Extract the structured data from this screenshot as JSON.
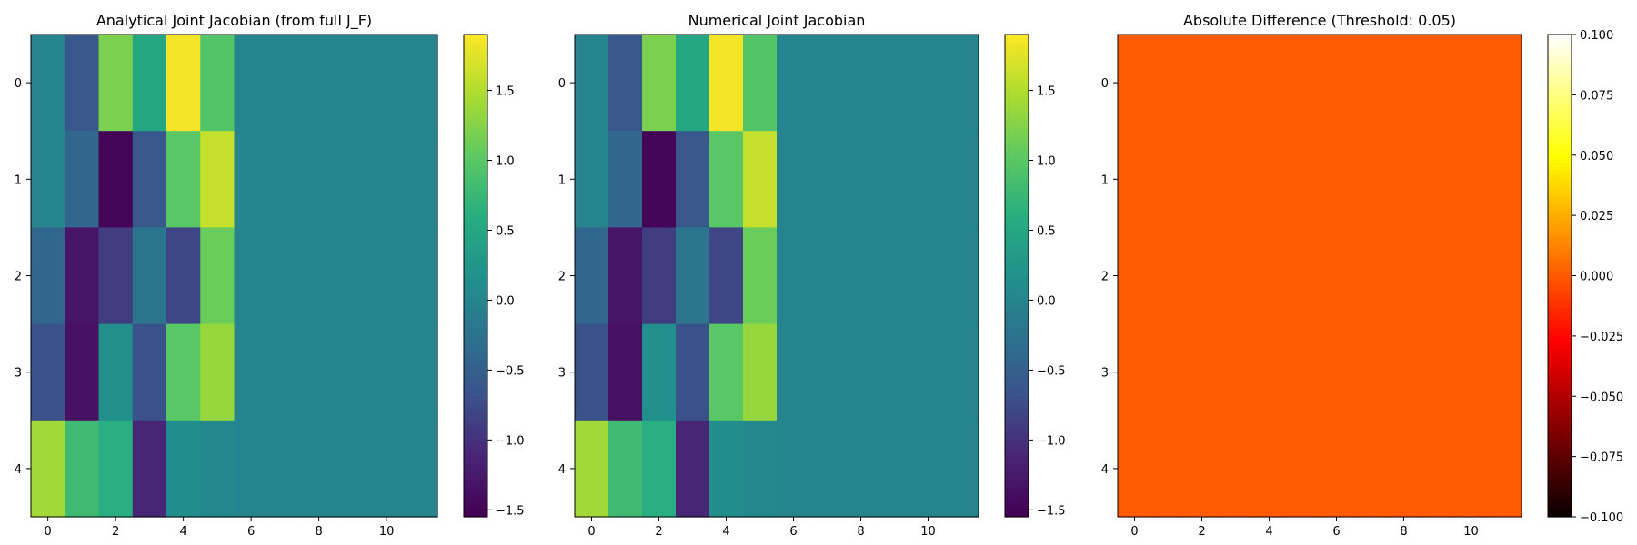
{
  "chart_data": [
    {
      "type": "heatmap",
      "title": "Analytical Joint Jacobian (from full J_F)",
      "colormap": "viridis",
      "rows": 5,
      "cols": 12,
      "x_ticks": [
        0,
        2,
        4,
        6,
        8,
        10
      ],
      "y_ticks": [
        0,
        1,
        2,
        3,
        4
      ],
      "values": [
        [
          0.0,
          -0.6,
          1.2,
          0.5,
          1.85,
          0.95,
          0,
          0,
          0,
          0,
          0,
          0
        ],
        [
          0.0,
          -0.4,
          -1.5,
          -0.6,
          1.0,
          1.6,
          0,
          0,
          0,
          0,
          0,
          0
        ],
        [
          -0.4,
          -1.3,
          -0.9,
          -0.2,
          -0.8,
          1.1,
          0,
          0,
          0,
          0,
          0,
          0
        ],
        [
          -0.7,
          -1.35,
          0.15,
          -0.7,
          1.0,
          1.35,
          0,
          0,
          0,
          0,
          0,
          0
        ],
        [
          1.4,
          0.8,
          0.6,
          -1.1,
          0.1,
          0.05,
          0,
          0,
          0,
          0,
          0,
          0
        ]
      ],
      "colorbar": {
        "min": -1.55,
        "max": 1.9,
        "ticks": [
          -1.5,
          -1.0,
          -0.5,
          0.0,
          0.5,
          1.0,
          1.5
        ],
        "tick_labels": [
          "−1.5",
          "−1.0",
          "−0.5",
          "0.0",
          "0.5",
          "1.0",
          "1.5"
        ]
      }
    },
    {
      "type": "heatmap",
      "title": "Numerical Joint Jacobian",
      "colormap": "viridis",
      "rows": 5,
      "cols": 12,
      "x_ticks": [
        0,
        2,
        4,
        6,
        8,
        10
      ],
      "y_ticks": [
        0,
        1,
        2,
        3,
        4
      ],
      "values": [
        [
          0.0,
          -0.6,
          1.2,
          0.5,
          1.85,
          0.95,
          0,
          0,
          0,
          0,
          0,
          0
        ],
        [
          0.0,
          -0.4,
          -1.5,
          -0.6,
          1.0,
          1.6,
          0,
          0,
          0,
          0,
          0,
          0
        ],
        [
          -0.4,
          -1.3,
          -0.9,
          -0.2,
          -0.8,
          1.1,
          0,
          0,
          0,
          0,
          0,
          0
        ],
        [
          -0.7,
          -1.35,
          0.15,
          -0.7,
          1.0,
          1.35,
          0,
          0,
          0,
          0,
          0,
          0
        ],
        [
          1.4,
          0.8,
          0.6,
          -1.1,
          0.1,
          0.05,
          0,
          0,
          0,
          0,
          0,
          0
        ]
      ],
      "colorbar": {
        "min": -1.55,
        "max": 1.9,
        "ticks": [
          -1.5,
          -1.0,
          -0.5,
          0.0,
          0.5,
          1.0,
          1.5
        ],
        "tick_labels": [
          "−1.5",
          "−1.0",
          "−0.5",
          "0.0",
          "0.5",
          "1.0",
          "1.5"
        ]
      }
    },
    {
      "type": "heatmap",
      "title": "Absolute Difference (Threshold: 0.05)",
      "colormap": "hot",
      "rows": 5,
      "cols": 12,
      "x_ticks": [
        0,
        2,
        4,
        6,
        8,
        10
      ],
      "y_ticks": [
        0,
        1,
        2,
        3,
        4
      ],
      "values": [
        [
          0,
          0,
          0,
          0,
          0,
          0,
          0,
          0,
          0,
          0,
          0,
          0
        ],
        [
          0,
          0,
          0,
          0,
          0,
          0,
          0,
          0,
          0,
          0,
          0,
          0
        ],
        [
          0,
          0,
          0,
          0,
          0,
          0,
          0,
          0,
          0,
          0,
          0,
          0
        ],
        [
          0,
          0,
          0,
          0,
          0,
          0,
          0,
          0,
          0,
          0,
          0,
          0
        ],
        [
          0,
          0,
          0,
          0,
          0,
          0,
          0,
          0,
          0,
          0,
          0,
          0
        ]
      ],
      "colorbar": {
        "min": -0.1,
        "max": 0.1,
        "ticks": [
          -0.1,
          -0.075,
          -0.05,
          -0.025,
          0.0,
          0.025,
          0.05,
          0.075,
          0.1
        ],
        "tick_labels": [
          "−0.100",
          "−0.075",
          "−0.050",
          "−0.025",
          "0.000",
          "0.025",
          "0.050",
          "0.075",
          "0.100"
        ]
      }
    }
  ]
}
